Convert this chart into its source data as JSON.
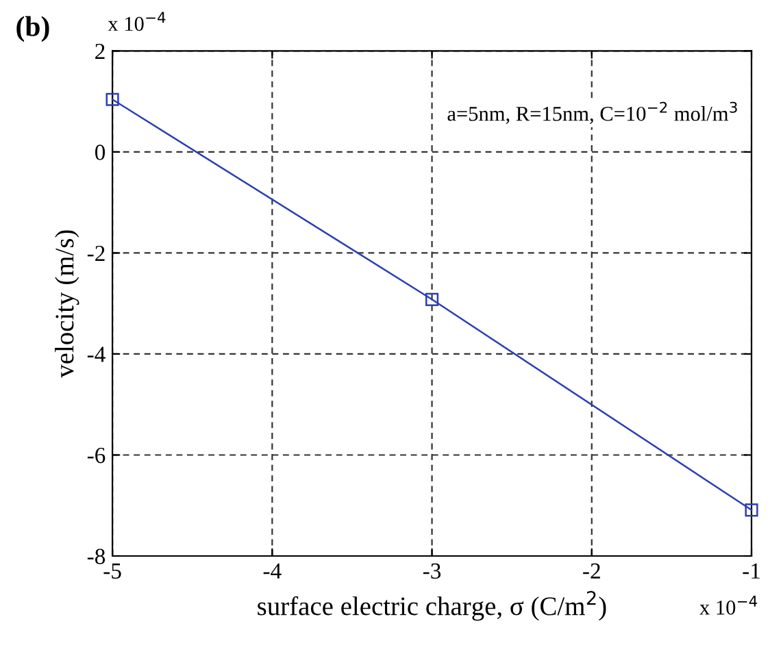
{
  "chart_data": {
    "type": "line",
    "title": "(b)",
    "xlabel": "surface electric charge, σ (C/m$^{2}$)",
    "ylabel": "velocity (m/s)",
    "x": [
      -5,
      -3,
      -1
    ],
    "series": [
      {
        "color": "#2b3fb0",
        "values": [
          1.04,
          -2.92,
          -7.09
        ]
      }
    ],
    "xlim": [
      -5,
      -1
    ],
    "xticks": [
      -5,
      -4,
      -3,
      -2,
      -1
    ],
    "ylim": [
      -8,
      2
    ],
    "yticks": [
      -8,
      -6,
      -4,
      -2,
      0,
      2
    ],
    "grid": true,
    "marker": "square",
    "line_style": "solid",
    "annotations": [
      "x 10$^{−4}$",
      "x 10$^{−4}$",
      "a=5nm, R=15nm, C=10$^{−2}$ mol/m$^{3}$"
    ]
  }
}
